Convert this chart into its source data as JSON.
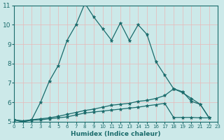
{
  "xlabel": "Humidex (Indice chaleur)",
  "bg_color": "#cce9e9",
  "grid_color": "#e8b8b8",
  "line_color": "#1a6b6b",
  "xlim": [
    0,
    23
  ],
  "ylim": [
    5,
    11
  ],
  "yticks": [
    5,
    6,
    7,
    8,
    9,
    10,
    11
  ],
  "xticks": [
    0,
    1,
    2,
    3,
    4,
    5,
    6,
    7,
    8,
    9,
    10,
    11,
    12,
    13,
    14,
    15,
    16,
    17,
    18,
    19,
    20,
    21,
    22,
    23
  ],
  "line1_x": [
    0,
    1,
    2,
    3,
    4,
    5,
    6,
    7,
    8,
    9,
    10,
    11,
    12,
    13,
    14,
    15,
    16,
    17,
    18,
    19,
    20,
    21,
    22
  ],
  "line1_y": [
    5.1,
    5.0,
    5.1,
    6.0,
    7.1,
    7.9,
    9.2,
    10.0,
    11.1,
    10.4,
    9.8,
    9.2,
    10.1,
    9.2,
    10.0,
    9.5,
    8.1,
    7.4,
    6.7,
    6.5,
    6.2,
    5.9,
    5.2
  ],
  "line2_x": [
    0,
    1,
    2,
    3,
    4,
    5,
    6,
    7,
    8,
    9,
    10,
    11,
    12,
    13,
    14,
    15,
    16,
    17,
    18,
    19,
    20,
    21,
    22
  ],
  "line2_y": [
    5.1,
    5.05,
    5.1,
    5.15,
    5.2,
    5.28,
    5.38,
    5.48,
    5.58,
    5.65,
    5.75,
    5.85,
    5.9,
    5.95,
    6.05,
    6.1,
    6.2,
    6.35,
    6.7,
    6.55,
    6.05,
    5.9,
    5.2
  ],
  "line3_x": [
    0,
    1,
    2,
    3,
    4,
    5,
    6,
    7,
    8,
    9,
    10,
    11,
    12,
    13,
    14,
    15,
    16,
    17,
    18,
    19,
    20,
    21,
    22
  ],
  "line3_y": [
    5.1,
    5.0,
    5.08,
    5.1,
    5.15,
    5.2,
    5.25,
    5.35,
    5.45,
    5.5,
    5.55,
    5.6,
    5.65,
    5.7,
    5.75,
    5.82,
    5.88,
    5.95,
    5.22,
    5.22,
    5.22,
    5.2,
    5.2
  ]
}
